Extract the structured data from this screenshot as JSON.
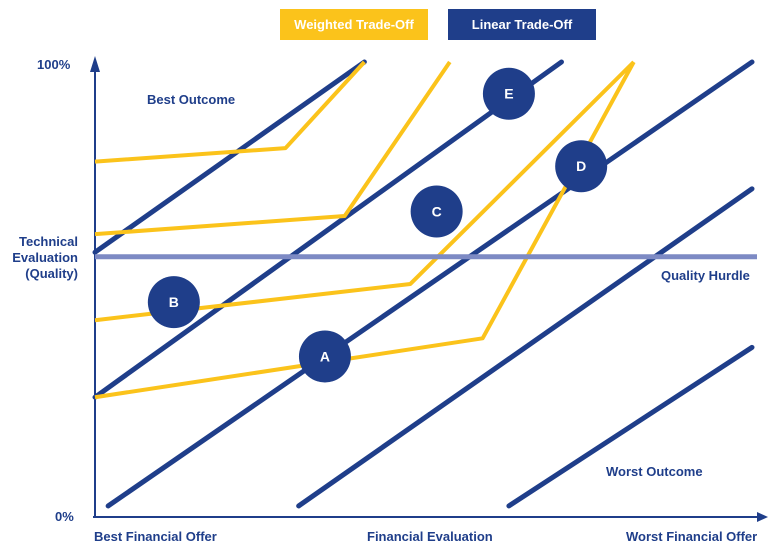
{
  "chart_data": {
    "type": "line",
    "title": "",
    "xlabel": "Financial Evaluation",
    "ylabel": "Technical Evaluation (Quality)",
    "ylabel_lines": [
      "Technical",
      "Evaluation",
      "(Quality)"
    ],
    "x_tick_labels": {
      "left": "Best Financial Offer",
      "right": "Worst Financial Offer"
    },
    "y_tick_labels": {
      "top": "100%",
      "bottom": "0%"
    },
    "xlim": [
      0,
      100
    ],
    "ylim": [
      0,
      100
    ],
    "grid": false,
    "legend_placement": "top-center",
    "legend": [
      {
        "label": "Weighted Trade-Off",
        "color": "#fbc31b"
      },
      {
        "label": "Linear Trade-Off",
        "color": "#1f3e8a"
      }
    ],
    "annotations": {
      "best_outcome": "Best Outcome",
      "worst_outcome": "Worst Outcome",
      "quality_hurdle": "Quality Hurdle"
    },
    "quality_hurdle": {
      "y": 57,
      "color": "#7d8ac4"
    },
    "linear_series": [
      {
        "x": [
          0,
          41
        ],
        "y": [
          58,
          100
        ]
      },
      {
        "x": [
          0,
          71
        ],
        "y": [
          26,
          100
        ]
      },
      {
        "x": [
          2,
          100
        ],
        "y": [
          2,
          100
        ]
      },
      {
        "x": [
          31,
          100
        ],
        "y": [
          2,
          72
        ]
      },
      {
        "x": [
          63,
          100
        ],
        "y": [
          2,
          37
        ]
      }
    ],
    "weighted_series": [
      {
        "x": [
          0,
          29,
          41
        ],
        "y": [
          78,
          81,
          100
        ]
      },
      {
        "x": [
          0,
          38,
          54
        ],
        "y": [
          62,
          66,
          100
        ]
      },
      {
        "x": [
          0,
          48,
          82
        ],
        "y": [
          43,
          51,
          100
        ]
      },
      {
        "x": [
          0,
          59,
          82
        ],
        "y": [
          26,
          39,
          100
        ]
      }
    ],
    "points": [
      {
        "label": "A",
        "x": 35,
        "y": 35
      },
      {
        "label": "B",
        "x": 12,
        "y": 47
      },
      {
        "label": "C",
        "x": 52,
        "y": 67
      },
      {
        "label": "D",
        "x": 74,
        "y": 77
      },
      {
        "label": "E",
        "x": 63,
        "y": 93
      }
    ],
    "colors": {
      "linear": "#1f3e8a",
      "weighted": "#fbc31b",
      "axis": "#1f3e8a",
      "point_text": "#ffffff"
    }
  }
}
